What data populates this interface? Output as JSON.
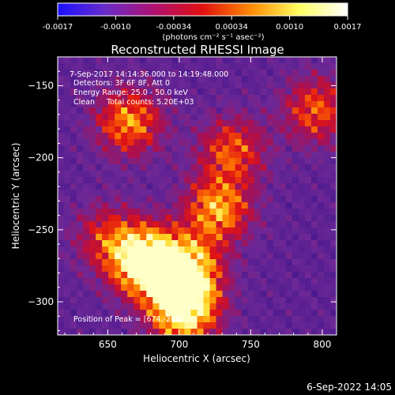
{
  "colorbar": {
    "ticks": [
      "-0.0017",
      "-0.0010",
      "-0.00034",
      "0.00034",
      "0.0010",
      "0.0017"
    ],
    "unit_label": "(photons cm⁻² s⁻¹ asec⁻²)",
    "colors": [
      "#1a10ff",
      "#6a2cc8",
      "#b01070",
      "#e11010",
      "#ff8a00",
      "#ffff60",
      "#ffffff"
    ]
  },
  "chart_data": {
    "type": "heatmap",
    "title": "Reconstructed RHESSI Image",
    "xlabel": "Heliocentric X (arcsec)",
    "ylabel": "Heliocentric Y (arcsec)",
    "xlim": [
      615,
      810
    ],
    "ylim": [
      -323,
      -130
    ],
    "x_ticks": [
      650,
      700,
      750,
      800
    ],
    "y_ticks": [
      -150,
      -200,
      -250,
      -300
    ],
    "x_tick_labels": [
      "650",
      "700",
      "750",
      "800"
    ],
    "y_tick_labels": [
      "-150",
      "-200",
      "-250",
      "-300"
    ],
    "annotations": {
      "time": "7-Sep-2017 14:14:36.000 to 14:19:48.000",
      "detectors": "Detectors: 3F 6F 8F, Att 0",
      "energy": "Energy Range: 25.0 - 50.0 keV",
      "clean": "Clean     Total counts: 5.20E+03",
      "peak": "Position of Peak = [674,-268]"
    },
    "sources": [
      {
        "x": 676,
        "y": -272,
        "intensity": 1.0
      },
      {
        "x": 703,
        "y": -305,
        "intensity": 0.9
      },
      {
        "x": 705,
        "y": -278,
        "intensity": 0.75
      },
      {
        "x": 727,
        "y": -236,
        "intensity": 0.6
      },
      {
        "x": 665,
        "y": -175,
        "intensity": 0.55
      },
      {
        "x": 737,
        "y": -195,
        "intensity": 0.45
      },
      {
        "x": 796,
        "y": -167,
        "intensity": 0.45
      },
      {
        "x": 650,
        "y": -255,
        "intensity": 0.35
      }
    ]
  },
  "footer": {
    "date": "6-Sep-2022 14:05"
  }
}
